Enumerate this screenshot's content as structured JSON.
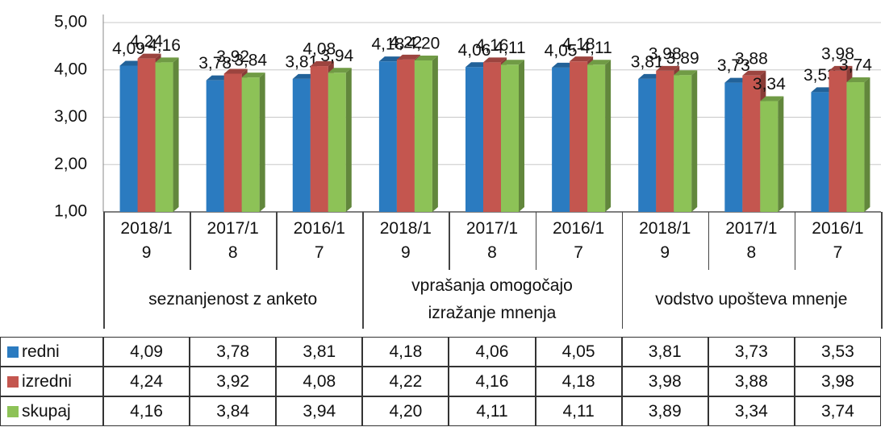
{
  "chart_data": {
    "type": "bar",
    "categories": [
      "2018/19",
      "2017/18",
      "2016/17",
      "2018/19",
      "2017/18",
      "2016/17",
      "2018/19",
      "2017/18",
      "2016/17"
    ],
    "groups": [
      "seznanjenost z anketo",
      "vprašanja omogočajo izražanje mnenja",
      "vodstvo upošteva mnenje"
    ],
    "series": [
      {
        "name": "redni",
        "color": "#2b7bc0",
        "values": [
          4.09,
          3.78,
          3.81,
          4.18,
          4.06,
          4.05,
          3.81,
          3.73,
          3.53
        ],
        "value_labels": [
          "4,09",
          "3,78",
          "3,81",
          "4,18",
          "4,06",
          "4,05",
          "3,81",
          "3,73",
          "3,53"
        ]
      },
      {
        "name": "izredni",
        "color": "#c4564f",
        "values": [
          4.24,
          3.92,
          4.08,
          4.22,
          4.16,
          4.18,
          3.98,
          3.88,
          3.98
        ],
        "value_labels": [
          "4,24",
          "3,92",
          "4,08",
          "4,22",
          "4,16",
          "4,18",
          "3,98",
          "3,88",
          "3,98"
        ]
      },
      {
        "name": "skupaj",
        "color": "#8dc257",
        "values": [
          4.16,
          3.84,
          3.94,
          4.2,
          4.11,
          4.11,
          3.89,
          3.34,
          3.74
        ],
        "value_labels": [
          "4,16",
          "3,84",
          "3,94",
          "4,20",
          "4,11",
          "4,11",
          "3,89",
          "3,34",
          "3,74"
        ]
      }
    ],
    "ylim": [
      1,
      5
    ],
    "yticks": [
      {
        "value": 1,
        "label": "1,00"
      },
      {
        "value": 2,
        "label": "2,00"
      },
      {
        "value": 3,
        "label": "3,00"
      },
      {
        "value": 4,
        "label": "4,00"
      },
      {
        "value": 5,
        "label": "5,00"
      }
    ],
    "grid": true
  }
}
